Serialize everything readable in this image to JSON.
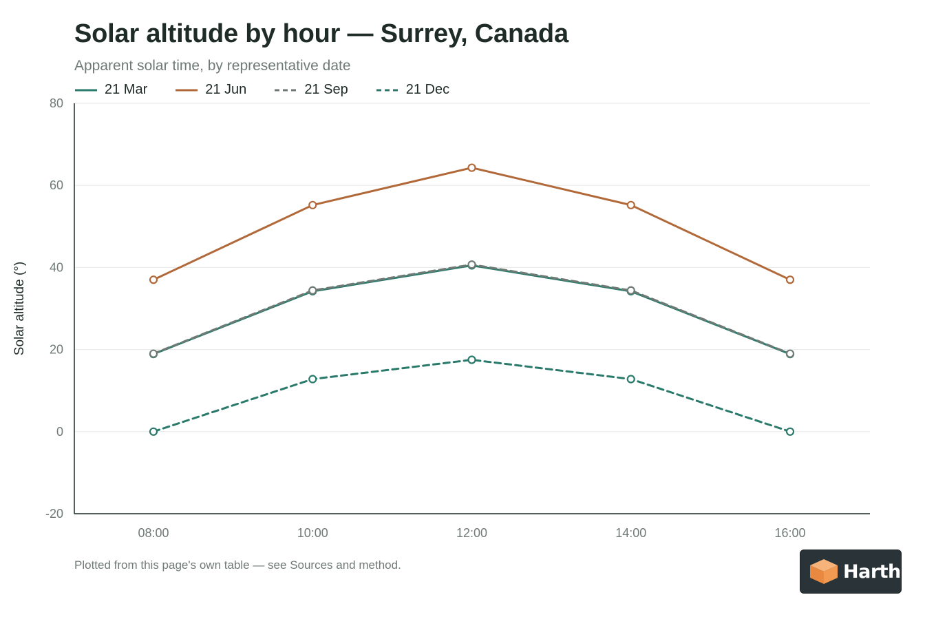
{
  "header": {
    "title": "Solar altitude by hour — Surrey, Canada",
    "subtitle": "Apparent solar time, by representative date"
  },
  "footer": {
    "note": "Plotted from this page's own table — see Sources and method."
  },
  "brand": {
    "name": "Harth",
    "logo_icon": "cube-logo-icon"
  },
  "chart_data": {
    "type": "line",
    "title": "Solar altitude by hour — Surrey, Canada",
    "subtitle": "Apparent solar time, by representative date",
    "xlabel": "",
    "ylabel": "Solar altitude (°)",
    "x": [
      "08:00",
      "10:00",
      "12:00",
      "14:00",
      "16:00"
    ],
    "ylim": [
      -20,
      80
    ],
    "yticks": [
      -20,
      0,
      20,
      40,
      60,
      80
    ],
    "grid": true,
    "legend_position": "top-left",
    "series": [
      {
        "name": "21 Mar",
        "values": [
          18.9,
          34.2,
          40.5,
          34.2,
          18.9
        ],
        "color": "#2a7a6c",
        "dashed": false
      },
      {
        "name": "21 Jun",
        "values": [
          37.0,
          55.2,
          64.3,
          55.2,
          37.0
        ],
        "color": "#b2693a",
        "dashed": false
      },
      {
        "name": "21 Sep",
        "values": [
          19.0,
          34.4,
          40.7,
          34.4,
          19.0
        ],
        "color": "#6f7a75",
        "dashed": true
      },
      {
        "name": "21 Dec",
        "values": [
          0.0,
          12.8,
          17.5,
          12.8,
          0.0
        ],
        "color": "#2a7a6c",
        "dashed": true
      }
    ]
  }
}
